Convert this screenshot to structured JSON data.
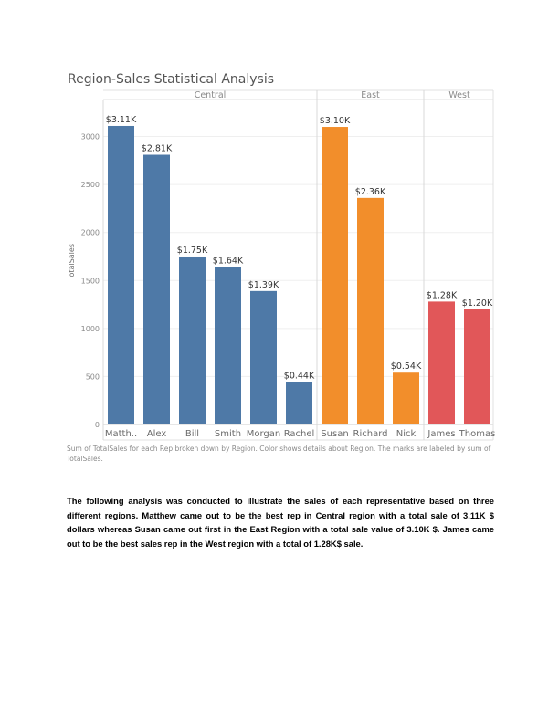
{
  "chart_data": {
    "type": "bar",
    "title": "Region-Sales Statistical Analysis",
    "ylabel": "TotalSales",
    "xlabel": "",
    "ylim": [
      0,
      3300
    ],
    "yticks": [
      0,
      500,
      1000,
      1500,
      2000,
      2500,
      3000
    ],
    "grid": true,
    "groups": [
      {
        "name": "Central",
        "color": "#4e79a7",
        "categories": [
          "Matth..",
          "Alex",
          "Bill",
          "Smith",
          "Morgan",
          "Rachel"
        ],
        "values": [
          3110,
          2810,
          1750,
          1640,
          1390,
          440
        ],
        "labels": [
          "$3.11K",
          "$2.81K",
          "$1.75K",
          "$1.64K",
          "$1.39K",
          "$0.44K"
        ]
      },
      {
        "name": "East",
        "color": "#f28e2b",
        "categories": [
          "Susan",
          "Richard",
          "Nick"
        ],
        "values": [
          3100,
          2360,
          540
        ],
        "labels": [
          "$3.10K",
          "$2.36K",
          "$0.54K"
        ]
      },
      {
        "name": "West",
        "color": "#e15759",
        "categories": [
          "James",
          "Thomas"
        ],
        "values": [
          1280,
          1200
        ],
        "labels": [
          "$1.28K",
          "$1.20K"
        ]
      }
    ]
  },
  "caption": "Sum of TotalSales for each Rep broken down by Region.  Color shows details about Region.  The marks are labeled by sum of TotalSales.",
  "analysis": "The following analysis was conducted to illustrate the sales of each representative based on three different regions. Matthew came out to be the best rep in Central region with a total sale of 3.11K $ dollars whereas Susan came out first in the East Region with a total sale value of 3.10K $. James came out to be the best sales rep in the West region with a total of 1.28K$ sale."
}
